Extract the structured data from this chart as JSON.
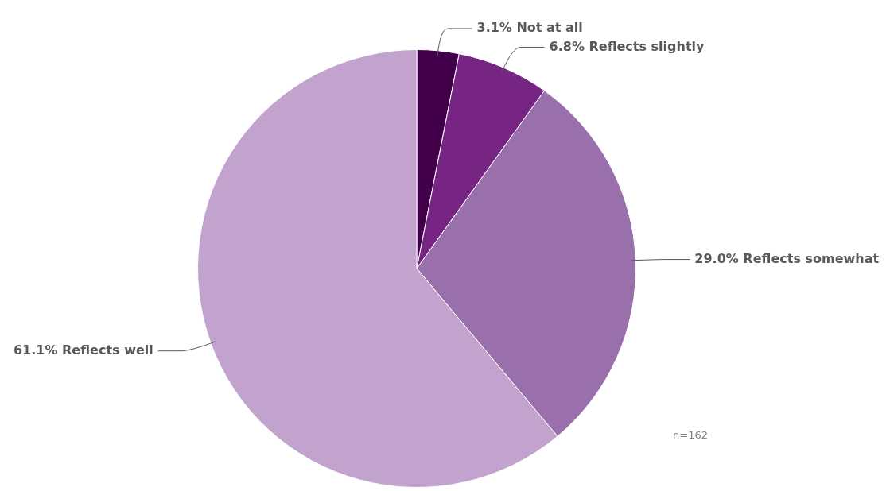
{
  "chart_data": {
    "type": "pie",
    "categories": [
      "Not at all",
      "Reflects slightly",
      "Reflects somewhat",
      "Reflects well"
    ],
    "values": [
      3.1,
      6.8,
      29.0,
      61.1
    ],
    "colors": [
      "#42004a",
      "#772583",
      "#9970ab",
      "#c1a3ce"
    ],
    "value_labels": [
      "3.1%",
      "6.8%",
      "29.0%",
      "61.1%"
    ],
    "legend": false,
    "annotations": [
      "n=162"
    ]
  }
}
